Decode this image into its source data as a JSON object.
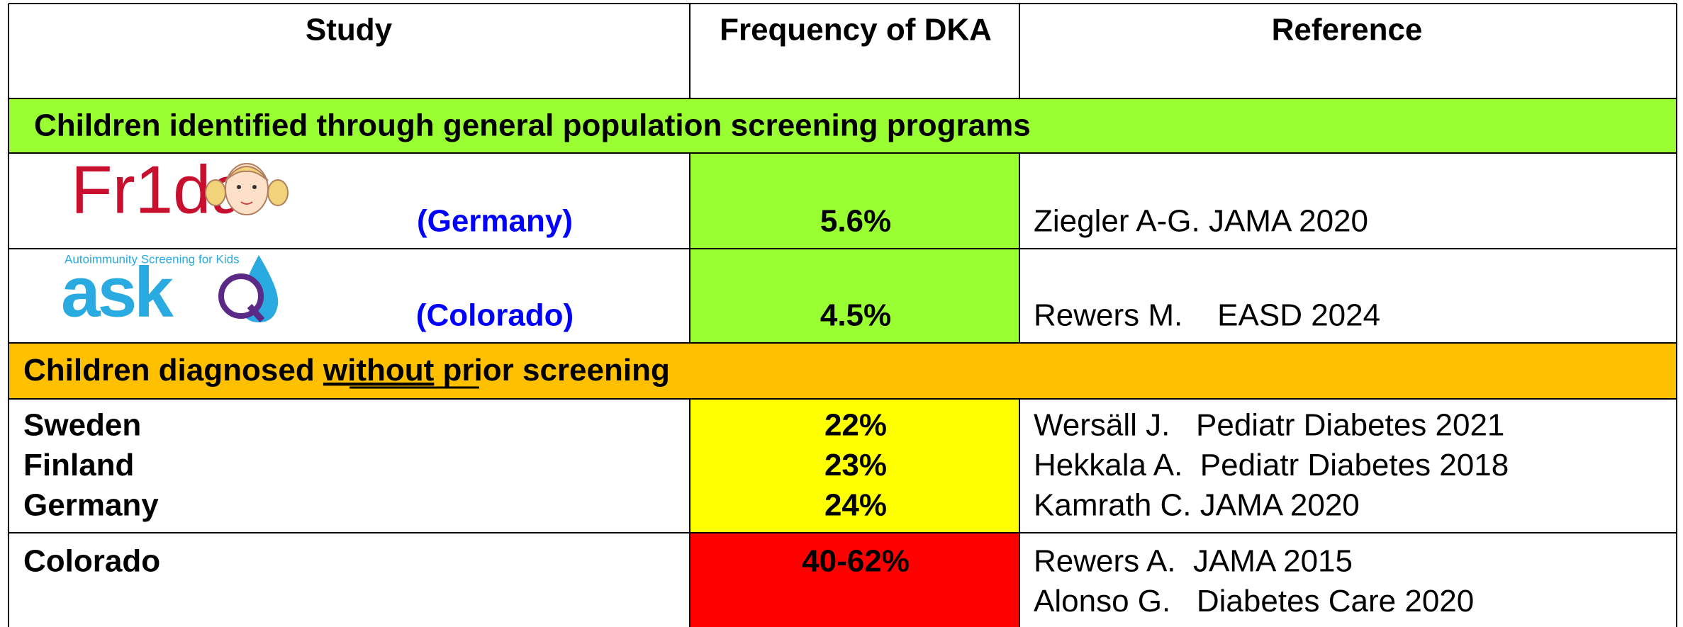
{
  "table": {
    "header": [
      "Study",
      "Frequency of DKA",
      "Reference"
    ],
    "sections": [
      {
        "title": "Children identified through general population screening programs",
        "rows": [
          {
            "logo": "Fr1da",
            "study": "(Germany)",
            "frequency": "5.6%",
            "reference": "Ziegler A-G. JAMA 2020"
          },
          {
            "logo": "ask",
            "logo_caption": "Autoimmunity Screening for Kids",
            "study": "(Colorado)",
            "frequency": "4.5%",
            "reference": "Rewers M.    EASD 2024"
          }
        ]
      },
      {
        "title_parts": [
          "Children diagnosed ",
          "without",
          " prior screening"
        ],
        "rows": [
          {
            "study": [
              "Sweden",
              "Finland",
              "Germany"
            ],
            "frequency": [
              "22%",
              "23%",
              "24%"
            ],
            "reference": [
              "Wersäll J.   Pediatr Diabetes 2021",
              "Hekkala A.  Pediatr Diabetes 2018",
              "Kamrath C. JAMA 2020"
            ]
          },
          {
            "study": [
              "Colorado"
            ],
            "frequency": [
              "40-62%"
            ],
            "reference": [
              "Rewers A.  JAMA 2015",
              "Alonso G.   Diabetes Care 2020"
            ]
          }
        ]
      }
    ]
  }
}
